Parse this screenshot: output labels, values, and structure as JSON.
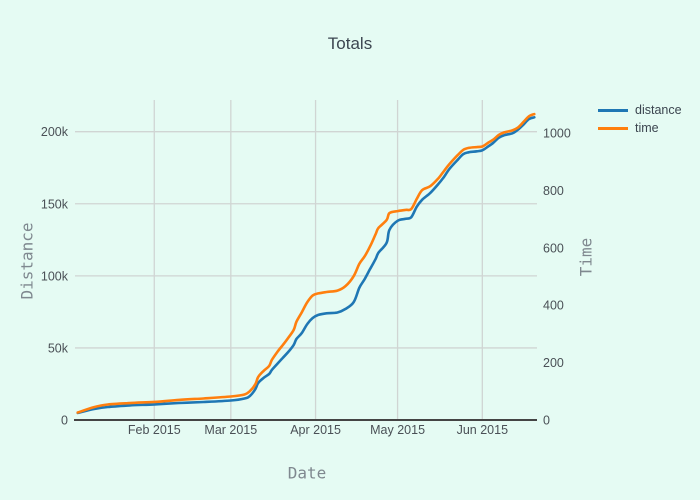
{
  "colors": {
    "background": "#e5fbf3",
    "grid": "#d0d5d3",
    "axis_line": "#444444",
    "tick_text": "#4a5056",
    "axis_title_text": "#7f888f",
    "title_text": "#3c4650"
  },
  "chart_data": {
    "type": "line",
    "title": "Totals",
    "xlabel": "Date",
    "ylabel_left": "Distance",
    "ylabel_right": "Time",
    "grid": true,
    "legend_position": "outside-top-right",
    "x_range": [
      "2015-01-03",
      "2015-06-21"
    ],
    "y_left_range": [
      0,
      222000
    ],
    "y_right_range": [
      0,
      1115
    ],
    "x_tick_dates": [
      "2015-02-01",
      "2015-03-01",
      "2015-04-01",
      "2015-05-01",
      "2015-06-01"
    ],
    "x_tick_labels": [
      "Feb 2015",
      "Mar 2015",
      "Apr 2015",
      "May 2015",
      "Jun 2015"
    ],
    "y_left_tick_values": [
      0,
      50000,
      100000,
      150000,
      200000
    ],
    "y_left_tick_labels": [
      "0",
      "50k",
      "100k",
      "150k",
      "200k"
    ],
    "y_right_tick_values": [
      0,
      200,
      400,
      600,
      800,
      1000
    ],
    "y_right_tick_labels": [
      "0",
      "200",
      "400",
      "600",
      "800",
      "1000"
    ],
    "x": [
      "2015-01-04",
      "2015-01-10",
      "2015-01-15",
      "2015-01-23",
      "2015-02-01",
      "2015-02-10",
      "2015-02-19",
      "2015-03-01",
      "2015-03-06",
      "2015-03-08",
      "2015-03-10",
      "2015-03-11",
      "2015-03-13",
      "2015-03-15",
      "2015-03-16",
      "2015-03-18",
      "2015-03-20",
      "2015-03-22",
      "2015-03-24",
      "2015-03-25",
      "2015-03-27",
      "2015-03-29",
      "2015-03-31",
      "2015-04-02",
      "2015-04-05",
      "2015-04-09",
      "2015-04-12",
      "2015-04-15",
      "2015-04-17",
      "2015-04-19",
      "2015-04-21",
      "2015-04-23",
      "2015-04-24",
      "2015-04-27",
      "2015-04-28",
      "2015-05-01",
      "2015-05-04",
      "2015-05-06",
      "2015-05-08",
      "2015-05-10",
      "2015-05-13",
      "2015-05-16",
      "2015-05-18",
      "2015-05-20",
      "2015-05-23",
      "2015-05-25",
      "2015-05-27",
      "2015-05-30",
      "2015-06-01",
      "2015-06-03",
      "2015-06-05",
      "2015-06-07",
      "2015-06-09",
      "2015-06-12",
      "2015-06-14",
      "2015-06-16",
      "2015-06-18",
      "2015-06-20"
    ],
    "series": [
      {
        "name": "distance",
        "axis": "left",
        "color": "#1f77b4",
        "values": [
          4900,
          7600,
          9000,
          10100,
          10800,
          11800,
          12500,
          13500,
          14900,
          16700,
          21500,
          25700,
          29200,
          31900,
          34700,
          38900,
          43100,
          47200,
          52100,
          56200,
          60400,
          66700,
          70800,
          72900,
          74000,
          74600,
          77100,
          81900,
          91700,
          97900,
          104900,
          111800,
          116000,
          122900,
          131900,
          138200,
          139600,
          140600,
          147900,
          152800,
          157600,
          163900,
          168700,
          174300,
          180500,
          184400,
          185700,
          186400,
          187100,
          189600,
          192300,
          195800,
          197600,
          198900,
          201400,
          204800,
          208700,
          210000
        ]
      },
      {
        "name": "time",
        "axis": "right",
        "color": "#ff7f0e",
        "values": [
          26,
          45,
          54,
          59,
          63,
          70,
          75,
          82,
          89,
          101,
          125,
          150,
          171,
          188,
          209,
          237,
          261,
          286,
          314,
          342,
          376,
          411,
          434,
          441,
          446,
          451,
          467,
          502,
          544,
          571,
          606,
          648,
          669,
          697,
          721,
          728,
          732,
          735,
          770,
          801,
          815,
          843,
          868,
          892,
          923,
          941,
          948,
          951,
          953,
          965,
          977,
          993,
          1002,
          1009,
          1019,
          1038,
          1058,
          1066
        ]
      }
    ]
  }
}
